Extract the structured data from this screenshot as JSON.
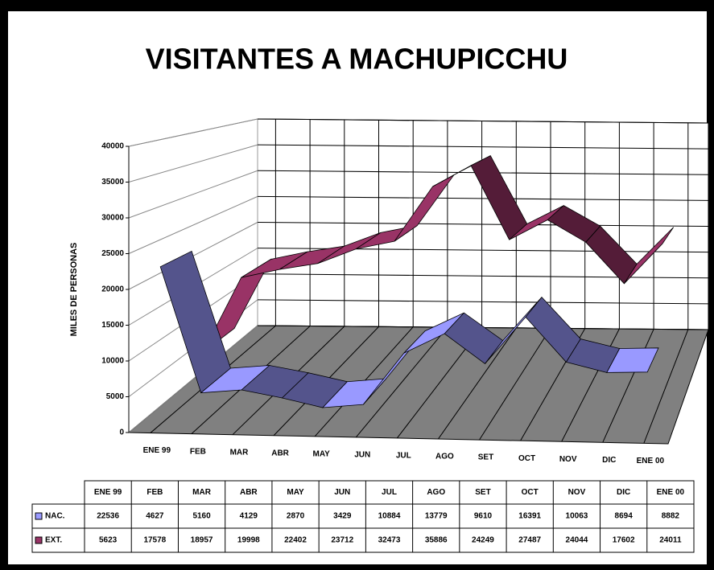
{
  "chart_data": {
    "type": "line3d",
    "title": "VISITANTES A MACHUPICCHU",
    "y_label": "MILES DE PERSONAS",
    "categories": [
      "ENE 99",
      "FEB",
      "MAR",
      "ABR",
      "MAY",
      "JUN",
      "JUL",
      "AGO",
      "SET",
      "OCT",
      "NOV",
      "DIC",
      "ENE 00"
    ],
    "series": [
      {
        "name": "NAC.",
        "color": "#9999ff",
        "values": [
          22536,
          4627,
          5160,
          4129,
          2870,
          3429,
          10884,
          13779,
          9610,
          16391,
          10063,
          8694,
          8882
        ]
      },
      {
        "name": "EXT.",
        "color": "#993366",
        "values": [
          5623,
          17578,
          18957,
          19998,
          22402,
          23712,
          32473,
          35886,
          24249,
          27487,
          24044,
          17602,
          24011
        ]
      }
    ],
    "ylim": [
      0,
      40000
    ],
    "yticks": [
      0,
      5000,
      10000,
      15000,
      20000,
      25000,
      30000,
      35000,
      40000
    ],
    "grid": true
  }
}
